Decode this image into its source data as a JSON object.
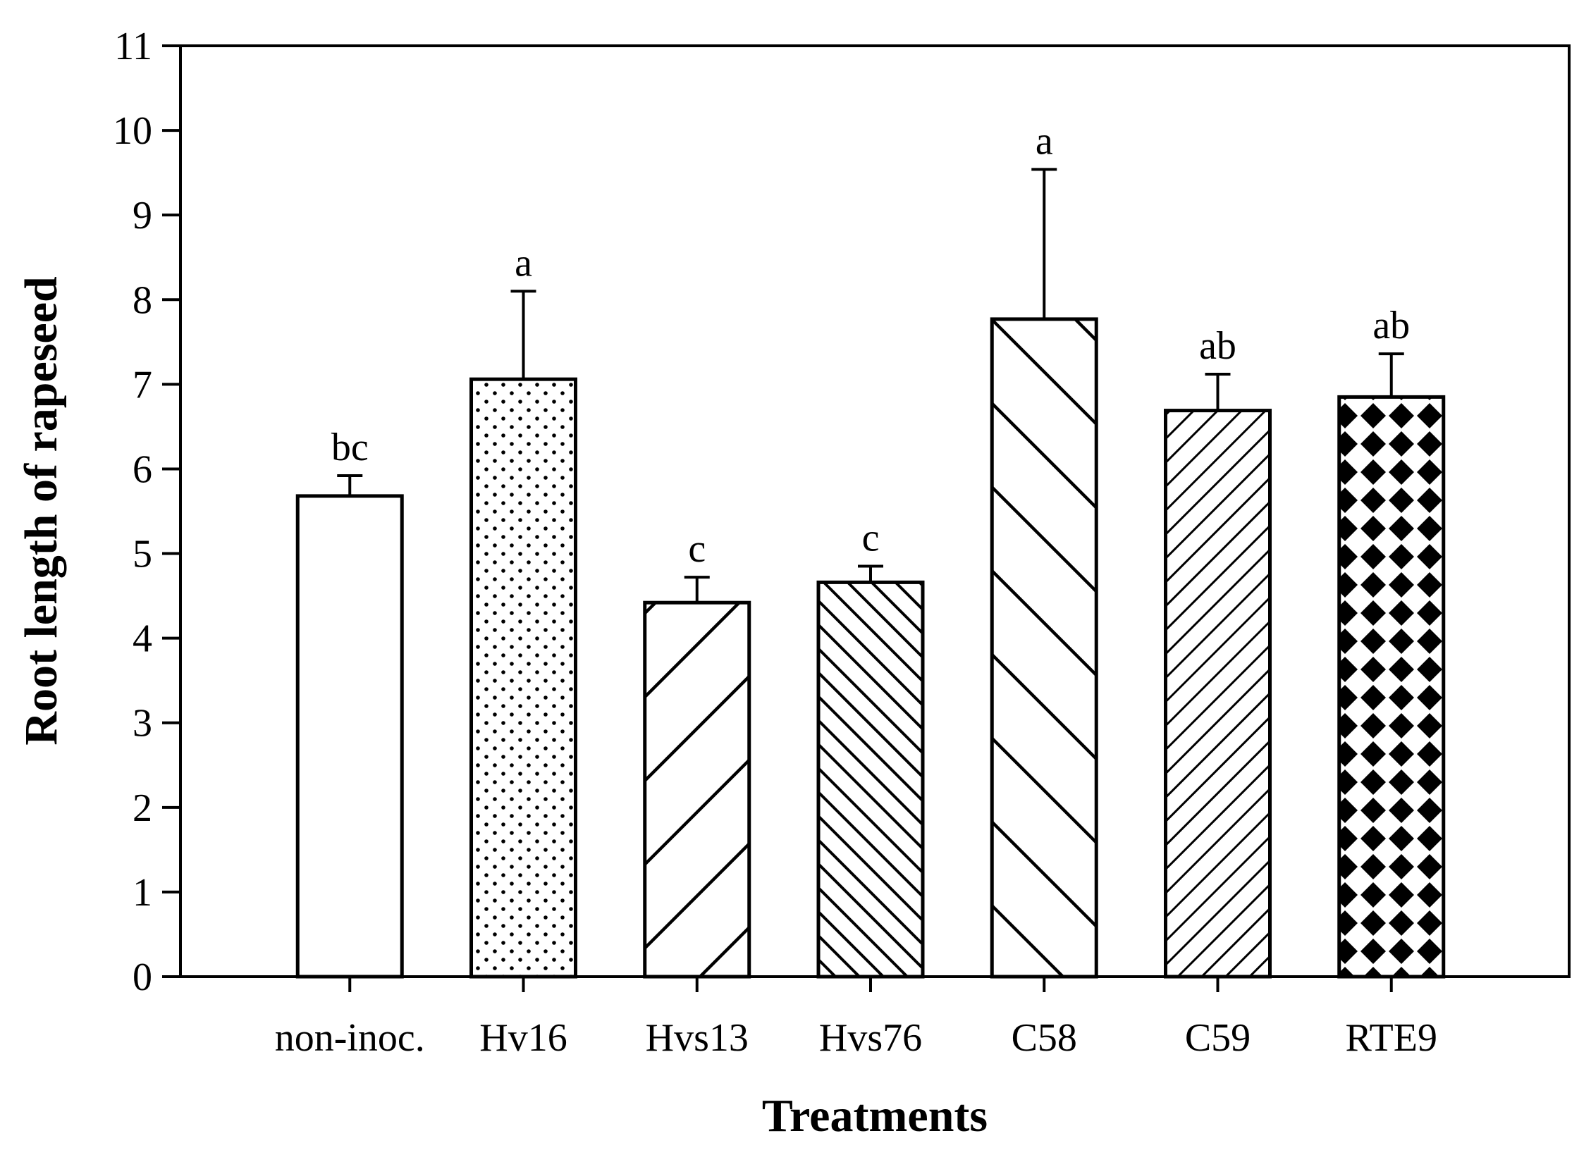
{
  "chart_data": {
    "type": "bar",
    "title": "",
    "xlabel": "Treatments",
    "ylabel": "Root length of rapeseed",
    "ylim": [
      0,
      11
    ],
    "yticks": [
      "0",
      "1",
      "2",
      "3",
      "4",
      "5",
      "6",
      "7",
      "8",
      "9",
      "10",
      "11"
    ],
    "grid": false,
    "categories": [
      "non-inoc.",
      "Hv16",
      "Hvs13",
      "Hvs76",
      "C58",
      "C59",
      "RTE9"
    ],
    "values": [
      5.68,
      7.06,
      4.42,
      4.66,
      7.77,
      6.69,
      6.85
    ],
    "errors": [
      0.24,
      1.04,
      0.3,
      0.19,
      1.77,
      0.43,
      0.51
    ],
    "significance": [
      "bc",
      "a",
      "c",
      "c",
      "a",
      "ab",
      "ab"
    ],
    "patterns": [
      "none",
      "dots",
      "diag-up-wide",
      "diag-down-dense",
      "diag-down-wide",
      "diag-up-dense",
      "diamonds"
    ]
  },
  "colors": {
    "ink": "#000000",
    "fill": "#ffffff"
  }
}
